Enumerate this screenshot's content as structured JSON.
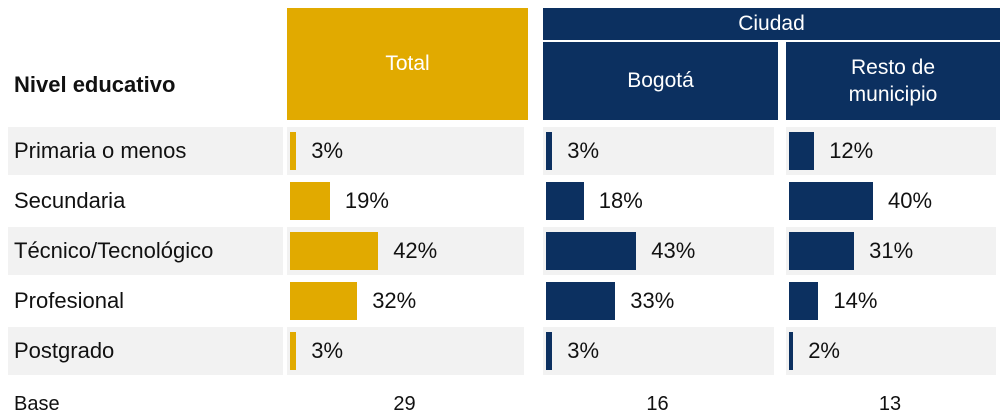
{
  "chart_data": {
    "type": "bar",
    "row_header": "Nivel educativo",
    "group_header": "Ciudad",
    "categories": [
      "Primaria o menos",
      "Secundaria",
      "Técnico/Tecnológico",
      "Profesional",
      "Postgrado"
    ],
    "series": [
      {
        "name": "Total",
        "color": "#e1aa00",
        "values": [
          3,
          19,
          42,
          32,
          3
        ],
        "value_labels": [
          "3%",
          "19%",
          "42%",
          "32%",
          "3%"
        ],
        "base": 29
      },
      {
        "name": "Bogotá",
        "color": "#0c3060",
        "group": "Ciudad",
        "values": [
          3,
          18,
          43,
          33,
          3
        ],
        "value_labels": [
          "3%",
          "18%",
          "43%",
          "33%",
          "3%"
        ],
        "base": 16
      },
      {
        "name": "Resto de municipio",
        "color": "#0c3060",
        "group": "Ciudad",
        "values": [
          12,
          40,
          31,
          14,
          2
        ],
        "value_labels": [
          "12%",
          "40%",
          "31%",
          "14%",
          "2%"
        ],
        "base": 13
      }
    ],
    "base_label": "Base"
  }
}
